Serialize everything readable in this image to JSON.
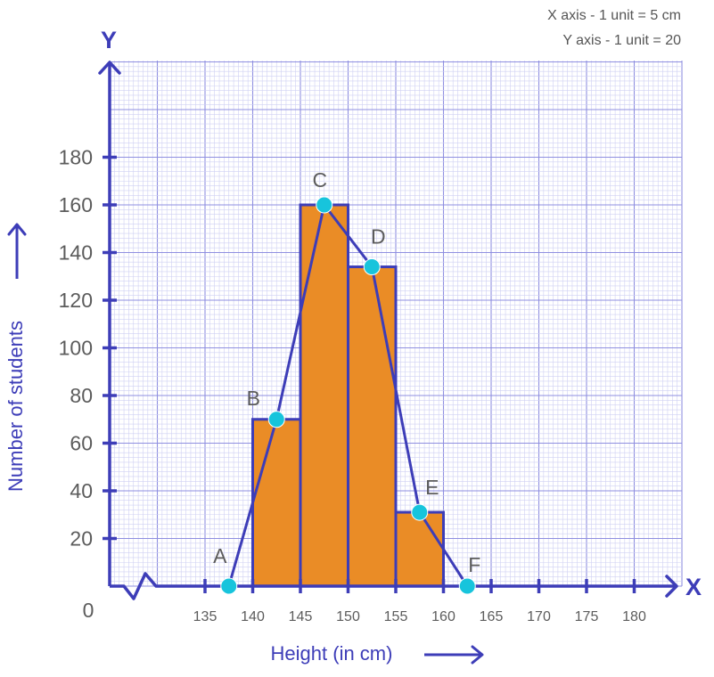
{
  "scale_note": {
    "x": "X axis - 1 unit = 5 cm",
    "y": "Y axis - 1 unit = 20"
  },
  "colors": {
    "axis": "#3d3db8",
    "grid_major": "#8f8fe0",
    "grid_minor": "#cfd0f3",
    "bar_fill": "#ea8c26",
    "bar_stroke": "#3d3db8",
    "polygon_line": "#3d3db8",
    "point_fill": "#17c4dc"
  },
  "chart_data": {
    "type": "bar",
    "subtype": "histogram_with_frequency_polygon",
    "title": "",
    "xlabel": "Height (in cm)",
    "ylabel": "Number of students",
    "x_axis_letter": "X",
    "y_axis_letter": "Y",
    "origin_label": "0",
    "x_ticks": [
      135,
      140,
      145,
      150,
      155,
      160,
      165,
      170,
      175,
      180
    ],
    "y_ticks": [
      20,
      40,
      60,
      80,
      100,
      120,
      140,
      160,
      180
    ],
    "xlim": [
      130,
      184
    ],
    "ylim": [
      0,
      220
    ],
    "axis_break_on_x": true,
    "grid": true,
    "bins": [
      {
        "from": 140,
        "to": 145,
        "value": 70
      },
      {
        "from": 145,
        "to": 150,
        "value": 160
      },
      {
        "from": 150,
        "to": 155,
        "value": 134
      },
      {
        "from": 155,
        "to": 160,
        "value": 31
      }
    ],
    "polygon_points": [
      {
        "label": "A",
        "x": 137.5,
        "y": 0
      },
      {
        "label": "B",
        "x": 142.5,
        "y": 70
      },
      {
        "label": "C",
        "x": 147.5,
        "y": 160
      },
      {
        "label": "D",
        "x": 152.5,
        "y": 134
      },
      {
        "label": "E",
        "x": 157.5,
        "y": 31
      },
      {
        "label": "F",
        "x": 162.5,
        "y": 0
      }
    ]
  }
}
